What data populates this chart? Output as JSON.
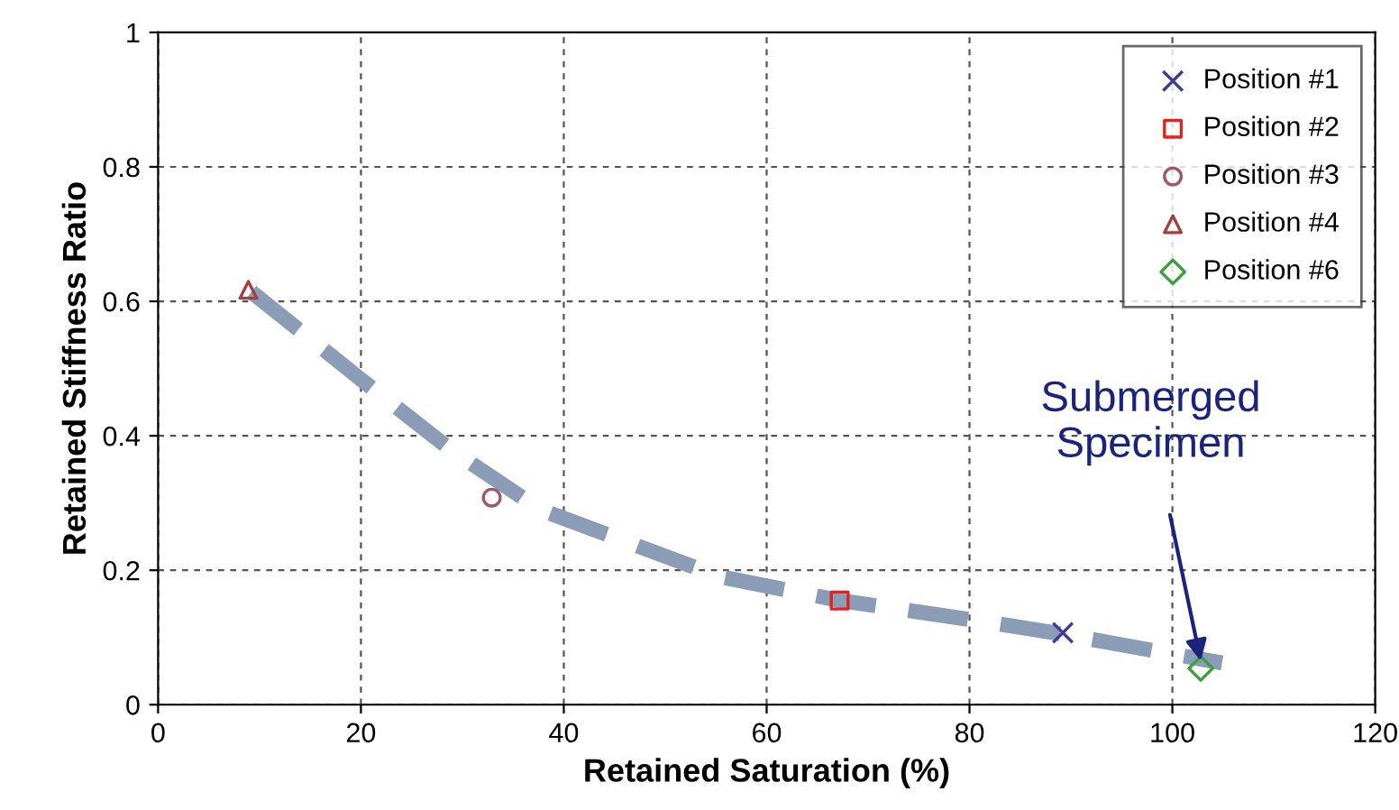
{
  "chart_data": {
    "type": "scatter",
    "xlabel": "Retained Saturation (%)",
    "ylabel": "Retained Stiffness Ratio",
    "xlim": [
      0,
      120
    ],
    "xticks": [
      0,
      20,
      40,
      60,
      80,
      100,
      120
    ],
    "ylim": [
      0,
      1
    ],
    "yticks": [
      0,
      0.2,
      0.4,
      0.6,
      0.8,
      1
    ],
    "grid": true,
    "legend": "top right",
    "series": [
      {
        "name": "Position #1",
        "color": "#3c3c96",
        "marker": "cross",
        "x": [
          89.2
        ],
        "values": [
          0.107
        ]
      },
      {
        "name": "Position #2",
        "color": "#e8201c",
        "marker": "square",
        "x": [
          67.2
        ],
        "values": [
          0.155
        ]
      },
      {
        "name": "Position #3",
        "color": "#a05868",
        "marker": "circle",
        "x": [
          32.9
        ],
        "values": [
          0.308
        ]
      },
      {
        "name": "Position #4",
        "color": "#a04040",
        "marker": "triangle",
        "x": [
          8.9
        ],
        "values": [
          0.617
        ]
      },
      {
        "name": "Position #6",
        "color": "#3ca03c",
        "marker": "diamond",
        "x": [
          102.8
        ],
        "values": [
          0.054
        ]
      },
      {
        "type": "line",
        "color": "#8a9cb6",
        "line_style": "dashed",
        "marker": "none",
        "x": [
          9.2,
          19.9,
          28.8,
          37.7,
          55.5,
          67.2,
          80.4,
          89.2,
          104.9
        ],
        "values": [
          0.614,
          0.485,
          0.38,
          0.29,
          0.19,
          0.155,
          0.126,
          0.105,
          0.062
        ]
      }
    ],
    "annotations": [
      {
        "text": "Submerged\nSpecimen",
        "x": 102.8,
        "y": 0.065
      }
    ]
  }
}
